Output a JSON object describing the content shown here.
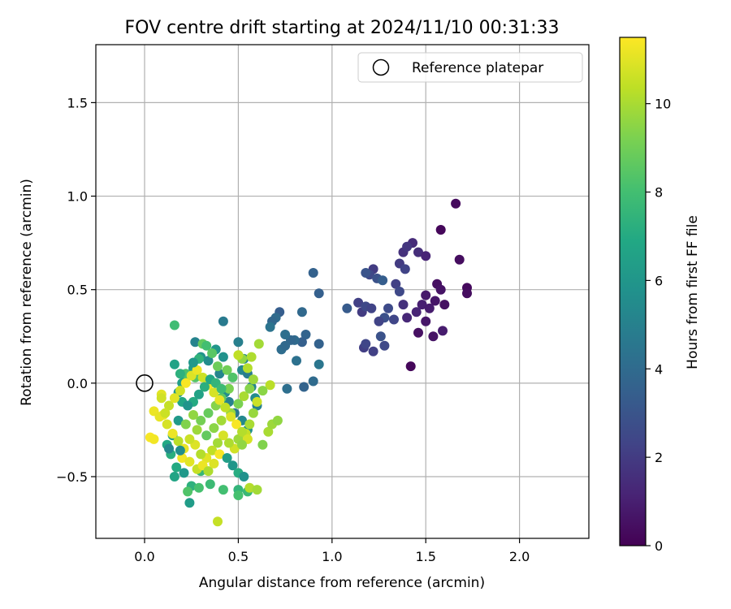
{
  "chart_data": {
    "type": "scatter",
    "title": "FOV centre drift starting at 2024/11/10 00:31:33",
    "xlabel": "Angular distance from reference (arcmin)",
    "ylabel": "Rotation from reference (arcmin)",
    "xlim": [
      -0.26,
      2.37
    ],
    "ylim": [
      -0.83,
      1.81
    ],
    "xticks": [
      0.0,
      0.5,
      1.0,
      1.5,
      2.0
    ],
    "xtick_labels": [
      "0.0",
      "0.5",
      "1.0",
      "1.5",
      "2.0"
    ],
    "yticks": [
      -0.5,
      0.0,
      0.5,
      1.0,
      1.5
    ],
    "ytick_labels": [
      "−0.5",
      "0.0",
      "0.5",
      "1.0",
      "1.5"
    ],
    "grid": true,
    "legend": {
      "placement": "top-right",
      "entries": [
        {
          "label": "Reference platepar",
          "marker": "hollow-circle"
        }
      ]
    },
    "reference_point": {
      "x": 0.0,
      "y": 0.0
    },
    "colorbar": {
      "label": "Hours from first FF file",
      "colormap": "viridis",
      "range": [
        0,
        11.5
      ],
      "ticks": [
        0,
        2,
        4,
        6,
        8,
        10
      ],
      "tick_labels": [
        "0",
        "2",
        "4",
        "6",
        "8",
        "10"
      ]
    },
    "points": [
      [
        1.66,
        0.96,
        0.3
      ],
      [
        1.58,
        0.82,
        0.2
      ],
      [
        1.68,
        0.66,
        0.4
      ],
      [
        1.72,
        0.51,
        0.3
      ],
      [
        1.72,
        0.48,
        0.4
      ],
      [
        1.56,
        0.53,
        0.5
      ],
      [
        1.58,
        0.5,
        0.6
      ],
      [
        1.5,
        0.47,
        0.8
      ],
      [
        1.55,
        0.44,
        0.7
      ],
      [
        1.6,
        0.42,
        0.5
      ],
      [
        1.42,
        0.09,
        0.2
      ],
      [
        1.46,
        0.27,
        0.5
      ],
      [
        1.5,
        0.33,
        0.7
      ],
      [
        1.54,
        0.25,
        0.6
      ],
      [
        1.59,
        0.28,
        0.9
      ],
      [
        1.48,
        0.42,
        1.0
      ],
      [
        1.52,
        0.4,
        0.9
      ],
      [
        1.45,
        0.38,
        1.2
      ],
      [
        1.4,
        0.35,
        1.3
      ],
      [
        1.38,
        0.42,
        1.6
      ],
      [
        1.43,
        0.75,
        1.4
      ],
      [
        1.38,
        0.7,
        1.6
      ],
      [
        1.4,
        0.73,
        1.8
      ],
      [
        1.46,
        0.7,
        1.5
      ],
      [
        1.5,
        0.68,
        1.2
      ],
      [
        1.36,
        0.64,
        2.0
      ],
      [
        1.39,
        0.61,
        2.3
      ],
      [
        1.34,
        0.53,
        2.2
      ],
      [
        1.36,
        0.49,
        2.5
      ],
      [
        1.3,
        0.4,
        2.6
      ],
      [
        1.28,
        0.35,
        2.8
      ],
      [
        1.33,
        0.34,
        2.4
      ],
      [
        1.25,
        0.33,
        2.3
      ],
      [
        1.26,
        0.25,
        2.9
      ],
      [
        1.28,
        0.2,
        2.5
      ],
      [
        1.17,
        0.19,
        2.1
      ],
      [
        1.18,
        0.21,
        2.4
      ],
      [
        1.22,
        0.17,
        2.2
      ],
      [
        1.16,
        0.38,
        2.0
      ],
      [
        1.14,
        0.43,
        2.2
      ],
      [
        1.18,
        0.41,
        2.5
      ],
      [
        1.21,
        0.4,
        2.3
      ],
      [
        1.22,
        0.61,
        2.0
      ],
      [
        1.2,
        0.58,
        2.5
      ],
      [
        1.24,
        0.56,
        2.9
      ],
      [
        1.18,
        0.59,
        3.0
      ],
      [
        1.27,
        0.55,
        3.4
      ],
      [
        1.08,
        0.4,
        3.3
      ],
      [
        0.93,
        0.48,
        3.5
      ],
      [
        0.9,
        0.59,
        3.6
      ],
      [
        0.84,
        0.38,
        3.9
      ],
      [
        0.86,
        0.26,
        3.7
      ],
      [
        0.84,
        0.22,
        3.5
      ],
      [
        0.8,
        0.23,
        4.0
      ],
      [
        0.78,
        0.23,
        3.8
      ],
      [
        0.75,
        0.26,
        4.2
      ],
      [
        0.72,
        0.38,
        3.4
      ],
      [
        0.7,
        0.35,
        4.0
      ],
      [
        0.68,
        0.33,
        3.8
      ],
      [
        0.67,
        0.3,
        4.4
      ],
      [
        0.73,
        0.18,
        4.1
      ],
      [
        0.75,
        0.2,
        3.9
      ],
      [
        0.81,
        0.12,
        4.3
      ],
      [
        0.85,
        -0.02,
        3.7
      ],
      [
        0.9,
        0.01,
        4.0
      ],
      [
        0.93,
        0.1,
        4.5
      ],
      [
        0.93,
        0.21,
        3.6
      ],
      [
        0.76,
        -0.03,
        4.2
      ],
      [
        0.42,
        0.33,
        4.7
      ],
      [
        0.5,
        0.22,
        4.9
      ],
      [
        0.53,
        0.13,
        5.1
      ],
      [
        0.52,
        0.07,
        5.3
      ],
      [
        0.55,
        0.05,
        4.8
      ],
      [
        0.57,
        -0.02,
        5.2
      ],
      [
        0.59,
        -0.08,
        5.5
      ],
      [
        0.6,
        -0.12,
        5.0
      ],
      [
        0.52,
        -0.2,
        5.4
      ],
      [
        0.55,
        -0.25,
        5.7
      ],
      [
        0.48,
        -0.16,
        4.6
      ],
      [
        0.45,
        -0.1,
        5.0
      ],
      [
        0.43,
        -0.05,
        5.6
      ],
      [
        0.4,
        0.05,
        5.2
      ],
      [
        0.42,
        0.14,
        5.8
      ],
      [
        0.38,
        0.18,
        6.0
      ],
      [
        0.34,
        0.12,
        5.5
      ],
      [
        0.3,
        0.14,
        5.9
      ],
      [
        0.27,
        0.22,
        5.1
      ],
      [
        0.26,
        0.08,
        6.2
      ],
      [
        0.22,
        0.04,
        5.8
      ],
      [
        0.2,
        0.0,
        6.4
      ],
      [
        0.18,
        -0.05,
        6.0
      ],
      [
        0.16,
        0.1,
        6.6
      ],
      [
        0.2,
        -0.1,
        6.8
      ],
      [
        0.18,
        -0.2,
        6.2
      ],
      [
        0.15,
        -0.28,
        6.5
      ],
      [
        0.12,
        -0.33,
        6.9
      ],
      [
        0.14,
        -0.38,
        7.2
      ],
      [
        0.17,
        -0.45,
        7.0
      ],
      [
        0.16,
        -0.5,
        6.7
      ],
      [
        0.21,
        -0.48,
        6.1
      ],
      [
        0.24,
        -0.64,
        6.3
      ],
      [
        0.25,
        -0.55,
        7.3
      ],
      [
        0.3,
        -0.47,
        7.6
      ],
      [
        0.35,
        -0.54,
        7.8
      ],
      [
        0.42,
        -0.57,
        8.0
      ],
      [
        0.5,
        -0.57,
        7.5
      ],
      [
        0.5,
        -0.6,
        8.1
      ],
      [
        0.55,
        -0.58,
        7.7
      ],
      [
        0.16,
        0.31,
        7.9
      ],
      [
        0.22,
        0.05,
        8.2
      ],
      [
        0.27,
        0.03,
        8.4
      ],
      [
        0.29,
        0.13,
        7.4
      ],
      [
        0.31,
        0.21,
        8.7
      ],
      [
        0.33,
        0.2,
        8.0
      ],
      [
        0.36,
        0.16,
        8.5
      ],
      [
        0.39,
        0.09,
        8.9
      ],
      [
        0.44,
        0.07,
        9.0
      ],
      [
        0.47,
        0.03,
        8.3
      ],
      [
        0.45,
        -0.03,
        9.2
      ],
      [
        0.41,
        -0.08,
        8.6
      ],
      [
        0.38,
        -0.12,
        9.4
      ],
      [
        0.34,
        -0.16,
        8.8
      ],
      [
        0.3,
        -0.2,
        9.1
      ],
      [
        0.26,
        -0.17,
        9.6
      ],
      [
        0.22,
        -0.22,
        9.3
      ],
      [
        0.28,
        -0.25,
        9.8
      ],
      [
        0.33,
        -0.28,
        8.7
      ],
      [
        0.37,
        -0.24,
        9.5
      ],
      [
        0.41,
        -0.2,
        9.9
      ],
      [
        0.46,
        -0.16,
        9.7
      ],
      [
        0.5,
        -0.11,
        9.2
      ],
      [
        0.53,
        -0.07,
        10.0
      ],
      [
        0.56,
        -0.03,
        9.4
      ],
      [
        0.58,
        0.02,
        9.8
      ],
      [
        0.55,
        0.08,
        10.2
      ],
      [
        0.52,
        0.13,
        9.6
      ],
      [
        0.5,
        0.15,
        10.4
      ],
      [
        0.57,
        0.14,
        10.1
      ],
      [
        0.61,
        0.21,
        9.9
      ],
      [
        0.67,
        -0.01,
        10.3
      ],
      [
        0.63,
        -0.04,
        9.5
      ],
      [
        0.6,
        -0.1,
        10.6
      ],
      [
        0.58,
        -0.16,
        9.7
      ],
      [
        0.56,
        -0.22,
        10.0
      ],
      [
        0.54,
        -0.27,
        10.5
      ],
      [
        0.5,
        -0.3,
        9.8
      ],
      [
        0.48,
        -0.35,
        10.7
      ],
      [
        0.45,
        -0.32,
        10.1
      ],
      [
        0.42,
        -0.28,
        10.8
      ],
      [
        0.39,
        -0.32,
        9.9
      ],
      [
        0.36,
        -0.36,
        10.4
      ],
      [
        0.33,
        -0.4,
        11.0
      ],
      [
        0.3,
        -0.38,
        10.2
      ],
      [
        0.27,
        -0.33,
        10.9
      ],
      [
        0.24,
        -0.3,
        10.6
      ],
      [
        0.21,
        -0.35,
        11.1
      ],
      [
        0.18,
        -0.31,
        10.3
      ],
      [
        0.15,
        -0.27,
        11.2
      ],
      [
        0.12,
        -0.22,
        10.8
      ],
      [
        0.1,
        -0.17,
        11.3
      ],
      [
        0.13,
        -0.12,
        10.5
      ],
      [
        0.16,
        -0.08,
        11.0
      ],
      [
        0.19,
        -0.04,
        10.7
      ],
      [
        0.22,
        0.0,
        11.4
      ],
      [
        0.25,
        0.04,
        10.9
      ],
      [
        0.28,
        0.07,
        11.2
      ],
      [
        0.31,
        0.03,
        10.6
      ],
      [
        0.34,
        -0.01,
        11.3
      ],
      [
        0.37,
        -0.05,
        10.8
      ],
      [
        0.4,
        -0.09,
        11.1
      ],
      [
        0.43,
        -0.13,
        10.4
      ],
      [
        0.46,
        -0.18,
        10.9
      ],
      [
        0.49,
        -0.22,
        11.4
      ],
      [
        0.52,
        -0.26,
        10.2
      ],
      [
        0.55,
        -0.3,
        10.8
      ],
      [
        0.2,
        -0.4,
        11.3
      ],
      [
        0.24,
        -0.42,
        11.0
      ],
      [
        0.28,
        -0.46,
        10.5
      ],
      [
        0.31,
        -0.44,
        11.2
      ],
      [
        0.34,
        -0.47,
        10.1
      ],
      [
        0.37,
        -0.43,
        10.9
      ],
      [
        0.4,
        -0.38,
        11.4
      ],
      [
        0.39,
        -0.74,
        10.5
      ],
      [
        0.52,
        -0.33,
        9.6
      ],
      [
        0.56,
        -0.56,
        10.2
      ],
      [
        0.6,
        -0.57,
        9.9
      ],
      [
        0.63,
        -0.33,
        9.3
      ],
      [
        0.66,
        -0.26,
        10.0
      ],
      [
        0.68,
        -0.22,
        9.8
      ],
      [
        0.71,
        -0.2,
        9.6
      ],
      [
        0.09,
        -0.06,
        11.0
      ],
      [
        0.09,
        -0.08,
        10.7
      ],
      [
        0.05,
        -0.15,
        11.2
      ],
      [
        0.03,
        -0.29,
        11.4
      ],
      [
        0.05,
        -0.3,
        11.3
      ],
      [
        0.08,
        -0.18,
        11.1
      ],
      [
        0.11,
        -0.16,
        10.6
      ],
      [
        0.26,
        -0.1,
        7.0
      ],
      [
        0.29,
        -0.06,
        6.6
      ],
      [
        0.32,
        -0.02,
        7.2
      ],
      [
        0.35,
        0.02,
        6.9
      ],
      [
        0.38,
        0.0,
        7.5
      ],
      [
        0.41,
        -0.03,
        7.8
      ],
      [
        0.44,
        -0.4,
        6.4
      ],
      [
        0.47,
        -0.44,
        6.0
      ],
      [
        0.5,
        -0.48,
        7.1
      ],
      [
        0.53,
        -0.5,
        5.8
      ],
      [
        0.29,
        -0.56,
        8.1
      ],
      [
        0.23,
        -0.58,
        8.3
      ],
      [
        0.19,
        -0.36,
        5.6
      ],
      [
        0.13,
        -0.35,
        5.3
      ],
      [
        0.23,
        -0.12,
        5.9
      ],
      [
        0.26,
        0.11,
        6.1
      ],
      [
        0.19,
        0.05,
        7.3
      ]
    ]
  }
}
